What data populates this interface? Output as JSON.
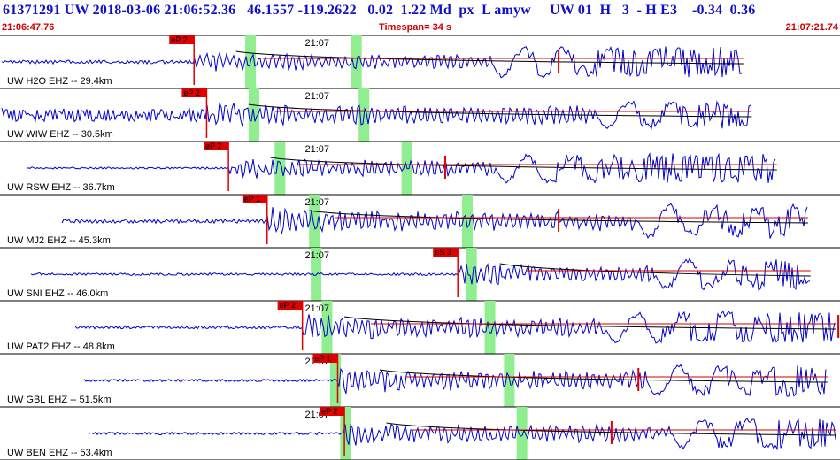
{
  "header": {
    "event_line": "61371291 UW 2018-03-06 21:06:52.36   46.1557 -119.2622   0.02  1.22 Md  px  L amyw     UW 01  H   3  - H E3    -0.34  0.36",
    "start_time": "21:06:47.76",
    "timespan": "Timespan=  34 s",
    "end_time": "21:07:21.74"
  },
  "colors": {
    "trace": "#0000cc",
    "pick_flag": "#e00000",
    "pick_text": "#000000",
    "window_band": "#90ee90",
    "coda_curve": "#000000",
    "coda_fit": "#d00000",
    "text_blue": "#1010c8",
    "text_red": "#d00000"
  },
  "panels": [
    {
      "label": "UW H2O EHZ -- 29.4km",
      "time_mark": "21:07",
      "pick": "eP 2",
      "amp": 11,
      "trace_start": 2,
      "quiet_amp": 2.2,
      "pick_t": 0.231,
      "surface_t": 0.585,
      "grow": 8,
      "trace_end": 0.885,
      "band1": 0.292,
      "band2": 0.418,
      "peak_t": 0.665
    },
    {
      "label": "UW WIW EHZ -- 30.5km",
      "time_mark": "21:07",
      "pick": "eP 2",
      "amp": 14,
      "trace_start": 2,
      "quiet_amp": 8,
      "pick_t": 0.246,
      "surface_t": 0.71,
      "grow": 3,
      "trace_end": 0.895,
      "band1": 0.296,
      "band2": 0.427,
      "peak_t": 0.0
    },
    {
      "label": "UW RSW EHZ -- 36.7km",
      "time_mark": "21:07",
      "pick": "eP 2",
      "amp": 12,
      "trace_start": 30,
      "quiet_amp": 1.2,
      "pick_t": 0.272,
      "surface_t": 0.59,
      "grow": 6,
      "trace_end": 0.925,
      "band1": 0.327,
      "band2": 0.478,
      "peak_t": 0.53
    },
    {
      "label": "UW MJ2 EHZ -- 45.3km",
      "time_mark": "21:07",
      "pick": "eP 1",
      "amp": 14,
      "trace_start": 70,
      "quiet_amp": 2.5,
      "pick_t": 0.318,
      "surface_t": 0.76,
      "grow": 7,
      "trace_end": 0.962,
      "band1": 0.368,
      "band2": 0.55,
      "peak_t": 0.665
    },
    {
      "label": "UW SNI EHZ -- 46.0km",
      "time_mark": "21:07",
      "pick": "eS 3",
      "amp": 12,
      "trace_start": 35,
      "quiet_amp": 1.5,
      "pick_t": 0.545,
      "surface_t": 0.78,
      "grow": 7,
      "trace_end": 0.965,
      "band1": 0.37,
      "band2": 0.555,
      "peak_t": 0.0
    },
    {
      "label": "UW PAT2 EHZ -- 48.8km",
      "time_mark": "21:07",
      "pick": "eP 2",
      "amp": 14,
      "trace_start": 85,
      "quiet_amp": 1.8,
      "pick_t": 0.36,
      "surface_t": 0.72,
      "grow": 6,
      "trace_end": 0.995,
      "band1": 0.383,
      "band2": 0.577,
      "peak_t": 0.998
    },
    {
      "label": "UW GBL EHZ -- 51.5km",
      "time_mark": "21:07",
      "pick": "eP 1",
      "amp": 14,
      "trace_start": 95,
      "quiet_amp": 1.6,
      "pick_t": 0.402,
      "surface_t": 0.77,
      "grow": 6,
      "trace_end": 0.985,
      "band1": 0.393,
      "band2": 0.6,
      "peak_t": 0.76
    },
    {
      "label": "UW BEN EHZ -- 53.4km",
      "time_mark": "21:07",
      "pick": "eP 2",
      "amp": 13,
      "trace_start": 100,
      "quiet_amp": 1.6,
      "pick_t": 0.41,
      "surface_t": 0.8,
      "grow": 6,
      "trace_end": 0.995,
      "band1": 0.405,
      "band2": 0.615,
      "peak_t": 0.728
    }
  ]
}
